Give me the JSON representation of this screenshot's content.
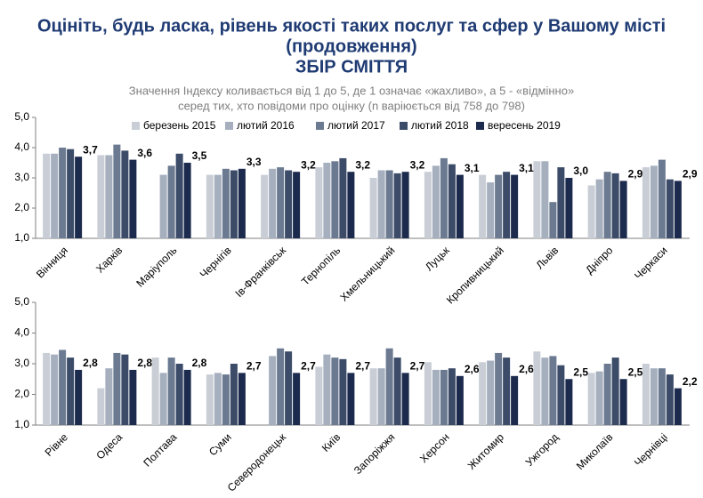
{
  "title_lines": [
    "Оцініть, будь ласка, рівень якості таких послуг та сфер у Вашому місті",
    "(продовження)",
    "ЗБІР СМІТТЯ"
  ],
  "subtitle_lines": [
    "Значення Індексу коливається від 1 до 5, де 1 означає «жахливо», а 5 - «відмінно»",
    "серед тих, хто повідоми про оцінку (n варіюється від 758 до 798)"
  ],
  "chart_data": [
    {
      "type": "bar",
      "categories": [
        "Вінниця",
        "Харків",
        "Маріуполь",
        "Чернігів",
        "Ів-Франківськ",
        "Тернопіль",
        "Хмельницький",
        "Луцьк",
        "Кропивницький",
        "Львів",
        "Дніпро",
        "Черкаси"
      ],
      "series": [
        {
          "name": "березень 2015",
          "color": "#c9ced6",
          "values": [
            3.8,
            3.75,
            null,
            3.1,
            3.1,
            3.35,
            3.0,
            3.2,
            3.1,
            3.55,
            2.75,
            3.35
          ]
        },
        {
          "name": "лютий 2016",
          "color": "#a5afbe",
          "values": [
            3.8,
            3.75,
            3.1,
            3.1,
            3.3,
            3.5,
            3.25,
            3.4,
            2.85,
            3.55,
            2.95,
            3.4
          ]
        },
        {
          "name": "лютий 2017",
          "color": "#6b7a91",
          "values": [
            4.0,
            4.1,
            3.4,
            3.3,
            3.35,
            3.55,
            3.25,
            3.65,
            3.1,
            2.2,
            3.2,
            3.6
          ]
        },
        {
          "name": "лютий 2018",
          "color": "#3b4b68",
          "values": [
            3.95,
            3.9,
            3.8,
            3.25,
            3.25,
            3.65,
            3.15,
            3.45,
            3.2,
            3.35,
            3.15,
            2.95
          ]
        },
        {
          "name": "вересень 2019",
          "color": "#1b2a4d",
          "values": [
            3.7,
            3.6,
            3.5,
            3.3,
            3.2,
            3.2,
            3.2,
            3.1,
            3.1,
            3.0,
            2.9,
            2.9
          ],
          "value_labels": [
            "3,7",
            "3,6",
            "3,5",
            "3,3",
            "3,2",
            "3,2",
            "3,2",
            "3,1",
            "3,1",
            "3,0",
            "2,9",
            "2,9"
          ]
        }
      ],
      "ylim": [
        1,
        5
      ],
      "yticks": [
        {
          "value": 1,
          "label": "1,0"
        },
        {
          "value": 2,
          "label": "2,0"
        },
        {
          "value": 3,
          "label": "3,0"
        },
        {
          "value": 4,
          "label": "4,0"
        },
        {
          "value": 5,
          "label": "5,0"
        }
      ]
    },
    {
      "type": "bar",
      "categories": [
        "Рівне",
        "Одеса",
        "Полтава",
        "Суми",
        "Северодонецьк",
        "Київ",
        "Запоріжжя",
        "Херсон",
        "Житомир",
        "Ужгород",
        "Миколаїв",
        "Чернівці"
      ],
      "series": [
        {
          "color": "#c9ced6",
          "values": [
            3.35,
            2.2,
            3.2,
            2.65,
            null,
            2.9,
            2.85,
            3.05,
            3.05,
            3.4,
            2.7,
            3.0
          ]
        },
        {
          "color": "#a5afbe",
          "values": [
            3.3,
            2.85,
            2.7,
            2.7,
            3.25,
            3.3,
            2.85,
            2.8,
            3.1,
            3.2,
            2.75,
            2.85
          ]
        },
        {
          "color": "#6b7a91",
          "values": [
            3.45,
            3.35,
            3.2,
            2.65,
            3.5,
            3.2,
            3.5,
            2.8,
            3.35,
            3.25,
            3.0,
            2.85
          ]
        },
        {
          "color": "#3b4b68",
          "values": [
            3.2,
            3.3,
            3.0,
            3.0,
            3.4,
            3.15,
            3.2,
            2.85,
            3.2,
            2.95,
            3.2,
            2.65
          ]
        },
        {
          "color": "#1b2a4d",
          "values": [
            2.8,
            2.8,
            2.8,
            2.7,
            2.7,
            2.7,
            2.7,
            2.6,
            2.6,
            2.5,
            2.5,
            2.2
          ],
          "value_labels": [
            "2,8",
            "2,8",
            "2,8",
            "2,7",
            "2,7",
            "2,7",
            "2,7",
            "2,6",
            "2,6",
            "2,5",
            "2,5",
            "2,2"
          ]
        }
      ],
      "ylim": [
        1,
        5
      ],
      "yticks": [
        {
          "value": 1,
          "label": "1,0"
        },
        {
          "value": 2,
          "label": "2,0"
        },
        {
          "value": 3,
          "label": "3,0"
        },
        {
          "value": 4,
          "label": "4,0"
        },
        {
          "value": 5,
          "label": "5,0"
        }
      ]
    }
  ]
}
